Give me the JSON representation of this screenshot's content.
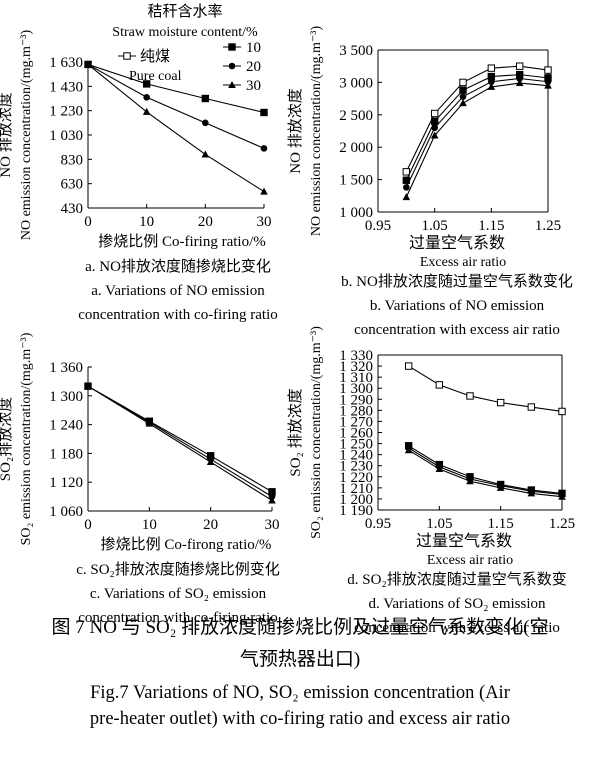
{
  "figure": {
    "caption_cn_line1": "图 7   NO 与 SO₂ 排放浓度随掺烧比例及过量空气系数变化(空",
    "caption_cn_line2": "气预热器出口)",
    "caption_en_line1": "Fig.7    Variations of NO, SO₂ emission concentration (Air",
    "caption_en_line2": "pre-heater outlet) with co-firing ratio and excess air ratio",
    "legend_title_cn": "秸秆含水率",
    "legend_title_en": "Straw moisture content/%",
    "legend_pure_coal_cn": "纯煤",
    "legend_pure_coal_en": "Pure coal"
  },
  "chart_data": [
    {
      "id": "a",
      "type": "line",
      "x": [
        0,
        10,
        20,
        30
      ],
      "xlim": [
        0,
        30
      ],
      "ylim": [
        430,
        1630
      ],
      "xticks": [
        "0",
        "10",
        "20",
        "30"
      ],
      "yticks": [
        "430",
        "630",
        "830",
        "1 030",
        "1 230",
        "1 430",
        "1 630"
      ],
      "xlabel": "掺烧比例 Co-firing ratio/%",
      "ylabel_cn": "NO 排放浓度",
      "ylabel_en": "NO emission concentration/(mg.m⁻³)",
      "caption_cn": "a. NO排放浓度随掺烧比变化",
      "caption_en1": "a. Variations of NO emission",
      "caption_en2": "concentration with co-firing ratio",
      "series": [
        {
          "name": "10",
          "marker": "square",
          "values": [
            1610,
            1450,
            1330,
            1215
          ]
        },
        {
          "name": "20",
          "marker": "dot",
          "values": [
            1610,
            1340,
            1130,
            920
          ]
        },
        {
          "name": "30",
          "marker": "triangle",
          "values": [
            1610,
            1220,
            870,
            565
          ]
        }
      ]
    },
    {
      "id": "b",
      "type": "line",
      "x": [
        1.0,
        1.05,
        1.1,
        1.15,
        1.2,
        1.25
      ],
      "xlim": [
        0.95,
        1.25
      ],
      "ylim": [
        1000,
        3500
      ],
      "xticks": [
        "0.95",
        "1.05",
        "1.15",
        "1.25"
      ],
      "yticks": [
        "1 000",
        "1 500",
        "2 000",
        "2 500",
        "3 000",
        "3 500"
      ],
      "xlabel_cn": "过量空气系数",
      "xlabel_en": "Excess air ratio",
      "ylabel_cn": "NO 排放浓度",
      "ylabel_en": "NO emission concentration/(mg.m⁻³)",
      "caption_cn": "b. NO排放浓度随过量空气系数变化",
      "caption_en1": "b. Variations of NO emission",
      "caption_en2": "concentration with excess air ratio",
      "series": [
        {
          "marker": "open-square",
          "values": [
            1620,
            2520,
            3000,
            3220,
            3250,
            3190
          ]
        },
        {
          "marker": "square",
          "values": [
            1490,
            2400,
            2880,
            3090,
            3120,
            3070
          ]
        },
        {
          "marker": "dot",
          "values": [
            1380,
            2300,
            2780,
            3010,
            3060,
            3010
          ]
        },
        {
          "marker": "triangle",
          "values": [
            1230,
            2180,
            2680,
            2930,
            2990,
            2950
          ]
        }
      ]
    },
    {
      "id": "c",
      "type": "line",
      "x": [
        0,
        10,
        20,
        30
      ],
      "xlim": [
        0,
        30
      ],
      "ylim": [
        1060,
        1360
      ],
      "xticks": [
        "0",
        "10",
        "20",
        "30"
      ],
      "yticks": [
        "1 060",
        "1 120",
        "1 180",
        "1 240",
        "1 300",
        "1 360"
      ],
      "xlabel": "掺烧比例 Co-firong ratio/%",
      "ylabel_cn": "SO₂排放浓度",
      "ylabel_en": "SO₂ emission concentration/(mg.m⁻³)",
      "caption_cn": "c. SO₂排放浓度随掺烧比例变化",
      "caption_en1": "c. Variations of SO₂ emission",
      "caption_en2": "concentration with co-firing ratio",
      "series": [
        {
          "marker": "square",
          "values": [
            1320,
            1247,
            1175,
            1100
          ]
        },
        {
          "marker": "dot",
          "values": [
            1320,
            1245,
            1168,
            1090
          ]
        },
        {
          "marker": "triangle",
          "values": [
            1320,
            1242,
            1162,
            1082
          ]
        }
      ]
    },
    {
      "id": "d",
      "type": "line",
      "x": [
        1.0,
        1.05,
        1.1,
        1.15,
        1.2,
        1.25
      ],
      "xlim": [
        0.95,
        1.25
      ],
      "ylim": [
        1190,
        1330
      ],
      "xticks": [
        "0.95",
        "1.05",
        "1.15",
        "1.25"
      ],
      "yticks": [
        "1 190",
        "1 200",
        "1 210",
        "1 220",
        "1 230",
        "1 240",
        "1 250",
        "1 260",
        "1 270",
        "1 280",
        "1 290",
        "1 300",
        "1 310",
        "1 320",
        "1 330"
      ],
      "xlabel_cn": "过量空气系数",
      "xlabel_en": "Excess air ratio",
      "ylabel_cn": "SO₂ 排放浓度",
      "ylabel_en": "SO₂ emission concentration/(mg.m⁻³)",
      "caption_cn": "d. SO₂排放浓度随过量空气系数变",
      "caption_en1": "d. Variations of SO₂ emission",
      "caption_en2": "concentration with excess air ratio",
      "series": [
        {
          "marker": "open-square",
          "values": [
            1320,
            1303,
            1293,
            1287,
            1283,
            1279
          ]
        },
        {
          "marker": "square",
          "values": [
            1248,
            1231,
            1220,
            1213,
            1208,
            1205
          ]
        },
        {
          "marker": "dot",
          "values": [
            1246,
            1229,
            1218,
            1212,
            1207,
            1204
          ]
        },
        {
          "marker": "triangle",
          "values": [
            1244,
            1227,
            1216,
            1210,
            1205,
            1202
          ]
        }
      ]
    }
  ]
}
